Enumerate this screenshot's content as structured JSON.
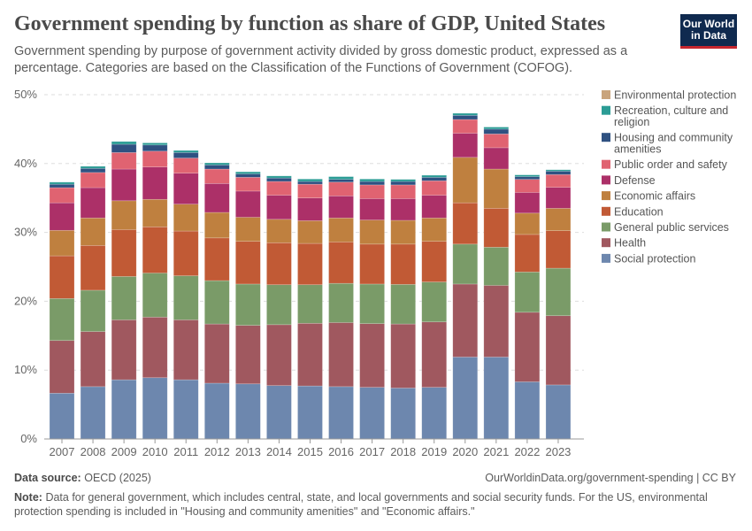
{
  "header": {
    "title": "Government spending by function as share of GDP, United States",
    "subtitle": "Government spending by purpose of government activity divided by gross domestic product, expressed as a percentage. Categories are based on the Classification of the Functions of Government (COFOG).",
    "logo_text": "Our World in Data"
  },
  "footer": {
    "source_label": "Data source:",
    "source": "OECD (2025)",
    "url": "OurWorldinData.org/government-spending | CC BY",
    "note_label": "Note:",
    "note": "Data for general government, which includes central, state, and local governments and social security funds. For the US, environmental protection spending is included in \"Housing and community amenities\" and \"Economic affairs.\""
  },
  "chart_data": {
    "type": "bar",
    "stacked": true,
    "categories": [
      "2007",
      "2008",
      "2009",
      "2010",
      "2011",
      "2012",
      "2013",
      "2014",
      "2015",
      "2016",
      "2017",
      "2018",
      "2019",
      "2020",
      "2021",
      "2022",
      "2023"
    ],
    "ylim": [
      0,
      50
    ],
    "yticks": [
      "0%",
      "10%",
      "20%",
      "30%",
      "40%",
      "50%"
    ],
    "grid": true,
    "legend_placement": "right",
    "series": [
      {
        "name": "Social protection",
        "color": "#6d87ae",
        "values": [
          6.65,
          7.6,
          8.6,
          8.9,
          8.6,
          8.1,
          8.0,
          7.75,
          7.7,
          7.6,
          7.5,
          7.4,
          7.5,
          11.9,
          11.9,
          8.3,
          7.85
        ]
      },
      {
        "name": "Health",
        "color": "#a0585f",
        "values": [
          7.65,
          8.0,
          8.7,
          8.8,
          8.7,
          8.6,
          8.5,
          8.85,
          9.1,
          9.3,
          9.25,
          9.3,
          9.5,
          10.6,
          10.4,
          10.1,
          10.05
        ]
      },
      {
        "name": "General public services",
        "color": "#7a9b68",
        "values": [
          6.1,
          6.0,
          6.3,
          6.4,
          6.4,
          6.3,
          6.0,
          5.8,
          5.6,
          5.7,
          5.75,
          5.75,
          5.8,
          5.8,
          5.55,
          5.85,
          6.9
        ]
      },
      {
        "name": "Education",
        "color": "#c15a35",
        "values": [
          6.2,
          6.5,
          6.8,
          6.7,
          6.5,
          6.2,
          6.2,
          6.1,
          6.0,
          6.0,
          5.8,
          5.85,
          5.9,
          6.0,
          5.65,
          5.45,
          5.45
        ]
      },
      {
        "name": "Economic affairs",
        "color": "#bf803f",
        "values": [
          3.7,
          4.0,
          4.2,
          4.0,
          3.9,
          3.7,
          3.5,
          3.4,
          3.3,
          3.5,
          3.5,
          3.45,
          3.4,
          6.6,
          5.7,
          3.1,
          3.25
        ]
      },
      {
        "name": "Defense",
        "color": "#ac3068",
        "values": [
          4.0,
          4.4,
          4.6,
          4.7,
          4.5,
          4.2,
          3.8,
          3.5,
          3.3,
          3.2,
          3.1,
          3.15,
          3.3,
          3.5,
          3.1,
          3.0,
          3.05
        ]
      },
      {
        "name": "Public order and safety",
        "color": "#e06371",
        "values": [
          2.2,
          2.2,
          2.4,
          2.3,
          2.2,
          2.1,
          2.0,
          2.0,
          2.0,
          2.0,
          2.0,
          2.0,
          2.1,
          2.0,
          2.0,
          1.9,
          1.85
        ]
      },
      {
        "name": "Housing and community amenities",
        "color": "#2f5181",
        "values": [
          0.5,
          0.6,
          1.2,
          0.9,
          0.8,
          0.6,
          0.5,
          0.5,
          0.4,
          0.4,
          0.5,
          0.5,
          0.5,
          0.6,
          0.7,
          0.4,
          0.5
        ]
      },
      {
        "name": "Recreation, culture and religion",
        "color": "#2b9c95",
        "values": [
          0.3,
          0.3,
          0.4,
          0.3,
          0.3,
          0.3,
          0.3,
          0.3,
          0.35,
          0.4,
          0.35,
          0.3,
          0.3,
          0.3,
          0.3,
          0.25,
          0.2
        ]
      },
      {
        "name": "Environmental protection",
        "color": "#c9a47c",
        "values": [
          0,
          0,
          0,
          0,
          0,
          0,
          0,
          0,
          0,
          0,
          0,
          0,
          0,
          0,
          0,
          0,
          0
        ]
      }
    ]
  }
}
